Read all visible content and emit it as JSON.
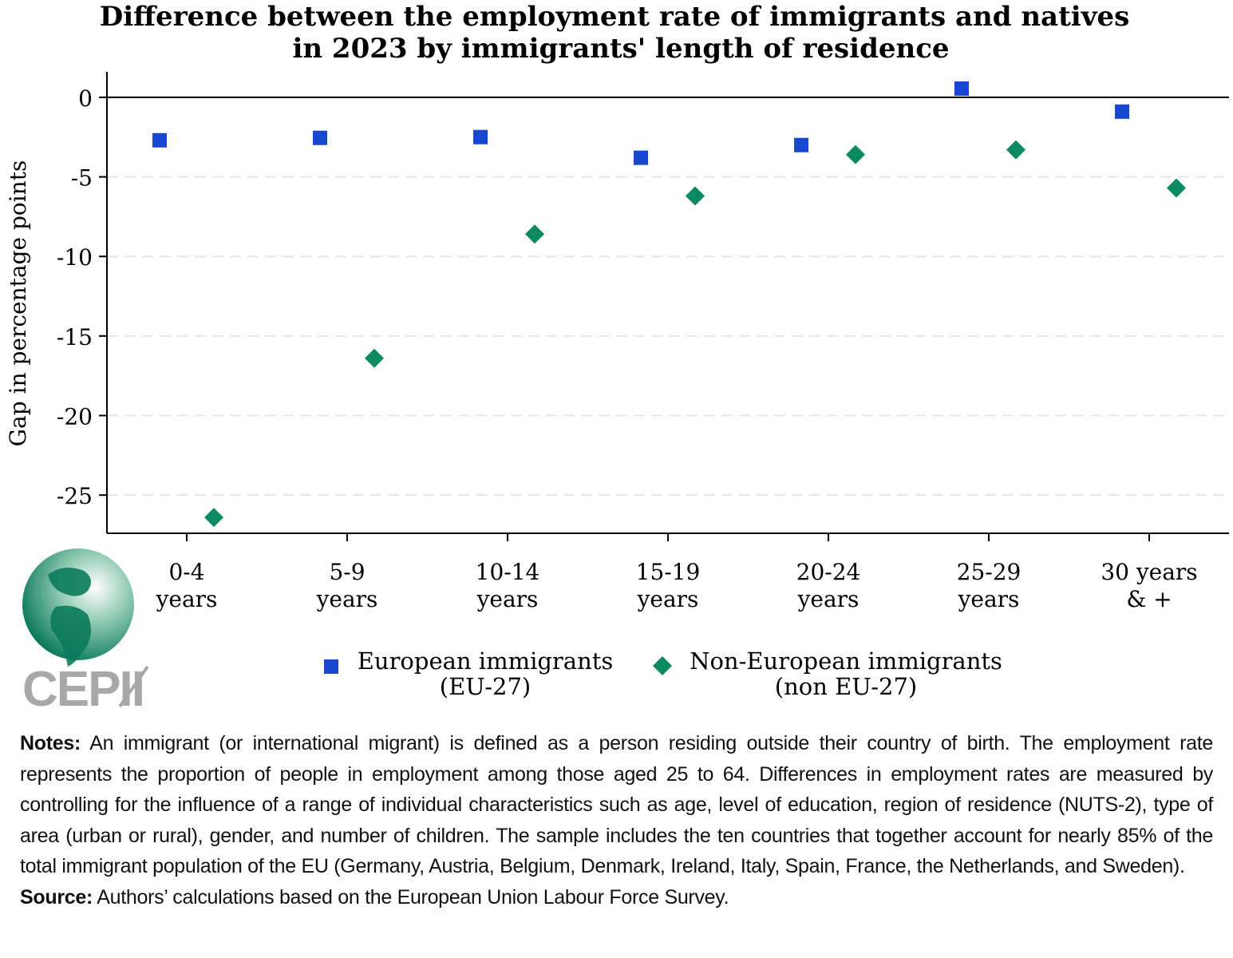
{
  "chart_data": {
    "type": "scatter",
    "title": [
      "Difference between the employment rate of immigrants and natives",
      "in 2023 by immigrants' length of residence"
    ],
    "ylabel": "Gap in percentage points",
    "xlabel": "",
    "ylim": [
      -27.4,
      1.6
    ],
    "yticks": [
      0,
      -5,
      -10,
      -15,
      -20,
      -25
    ],
    "ytick_labels": [
      "0",
      "-5",
      "-10",
      "-15",
      "-20",
      "-25"
    ],
    "grid": "horizontal dashed",
    "categories": [
      [
        "0-4",
        "years"
      ],
      [
        "5-9",
        "years"
      ],
      [
        "10-14",
        "years"
      ],
      [
        "15-19",
        "years"
      ],
      [
        "20-24",
        "years"
      ],
      [
        "25-29",
        "years"
      ],
      [
        "30 years",
        "& +"
      ]
    ],
    "series": [
      {
        "name": [
          "European immigrants",
          "(EU-27)"
        ],
        "marker": "square",
        "color": "#1747d1",
        "values": [
          -2.7,
          -2.55,
          -2.5,
          -3.8,
          -3.0,
          0.55,
          -0.9
        ]
      },
      {
        "name": [
          "Non-European immigrants",
          "(non EU-27)"
        ],
        "marker": "diamond",
        "color": "#0b8a62",
        "values": [
          -26.4,
          -16.4,
          -8.6,
          -6.2,
          -3.6,
          -3.3,
          -5.7
        ]
      }
    ],
    "legend": "bottom"
  },
  "logo": {
    "text": "CEPII"
  },
  "notes": {
    "notes_label": "Notes:",
    "notes_text": " An immigrant (or international migrant) is defined as a person residing outside their country of birth. The employment rate represents the proportion of people in employment among those aged 25 to 64. Differences in employment rates are measured by controlling for the influence of a range of individual characteristics such as age, level of education, region of residence (NUTS-2), type of area (urban or rural), gender, and number of children. The sample includes the ten countries that together account for nearly 85% of the total immigrant population of the EU (Germany, Austria, Belgium, Denmark, Ireland, Italy, Spain, France, the Netherlands, and Sweden).",
    "source_label": "Source:",
    "source_text": " Authors’ calculations based on the European Union Labour Force Survey."
  }
}
